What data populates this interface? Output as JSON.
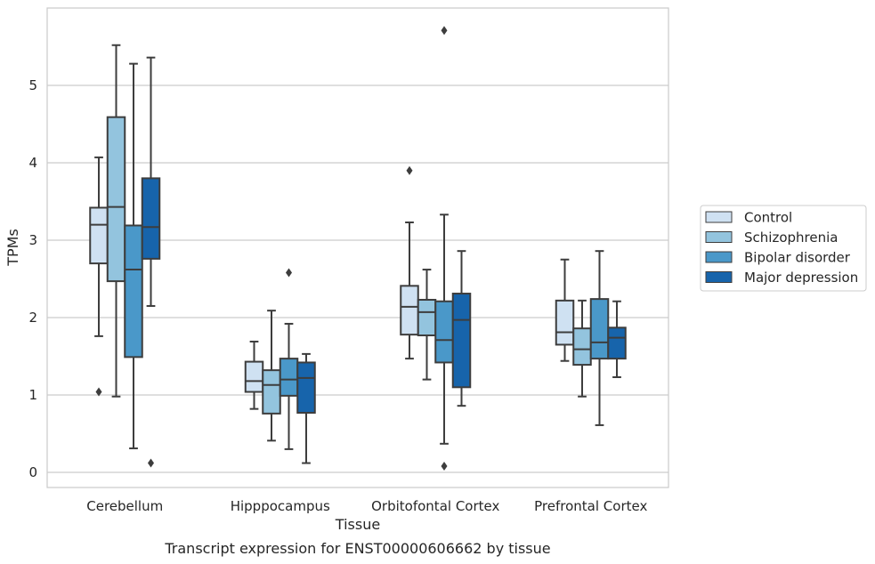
{
  "caption": "Transcript expression for ENST00000606662 by tissue",
  "chart_data": {
    "type": "box",
    "xlabel": "Tissue",
    "ylabel": "TPMs",
    "ylim": [
      -0.18,
      6.05
    ],
    "yticks": [
      0,
      1,
      2,
      3,
      4,
      5
    ],
    "grid": "horizontal",
    "legend_position": "right",
    "categories": [
      "Cerebellum",
      "Hipppocampus",
      "Orbitofontal Cortex",
      "Prefrontal Cortex"
    ],
    "series": [
      {
        "name": "Control",
        "color": "#cfe1f2",
        "boxes": [
          {
            "whislo": 1.76,
            "q1": 2.7,
            "med": 3.2,
            "q3": 3.42,
            "whishi": 4.07,
            "fliers": [
              1.04
            ]
          },
          {
            "whislo": 0.82,
            "q1": 1.04,
            "med": 1.18,
            "q3": 1.43,
            "whishi": 1.69,
            "fliers": []
          },
          {
            "whislo": 1.47,
            "q1": 1.78,
            "med": 2.14,
            "q3": 2.41,
            "whishi": 3.23,
            "fliers": [
              3.9
            ]
          },
          {
            "whislo": 1.44,
            "q1": 1.65,
            "med": 1.81,
            "q3": 2.22,
            "whishi": 2.75,
            "fliers": []
          }
        ]
      },
      {
        "name": "Schizophrenia",
        "color": "#93c4de",
        "boxes": [
          {
            "whislo": 0.98,
            "q1": 2.47,
            "med": 3.43,
            "q3": 4.59,
            "whishi": 5.52,
            "fliers": []
          },
          {
            "whislo": 0.41,
            "q1": 0.76,
            "med": 1.13,
            "q3": 1.32,
            "whishi": 2.09,
            "fliers": []
          },
          {
            "whislo": 1.2,
            "q1": 1.77,
            "med": 2.07,
            "q3": 2.23,
            "whishi": 2.62,
            "fliers": []
          },
          {
            "whislo": 0.98,
            "q1": 1.39,
            "med": 1.59,
            "q3": 1.86,
            "whishi": 2.22,
            "fliers": []
          }
        ]
      },
      {
        "name": "Bipolar disorder",
        "color": "#4a98c9",
        "boxes": [
          {
            "whislo": 0.31,
            "q1": 1.49,
            "med": 2.62,
            "q3": 3.19,
            "whishi": 5.28,
            "fliers": []
          },
          {
            "whislo": 0.3,
            "q1": 0.99,
            "med": 1.2,
            "q3": 1.47,
            "whishi": 1.92,
            "fliers": [
              2.58
            ]
          },
          {
            "whislo": 0.37,
            "q1": 1.42,
            "med": 1.71,
            "q3": 2.21,
            "whishi": 3.33,
            "fliers": [
              0.08,
              5.71
            ]
          },
          {
            "whislo": 0.61,
            "q1": 1.47,
            "med": 1.68,
            "q3": 2.24,
            "whishi": 2.86,
            "fliers": []
          }
        ]
      },
      {
        "name": "Major depression",
        "color": "#1764ab",
        "boxes": [
          {
            "whislo": 2.15,
            "q1": 2.76,
            "med": 3.17,
            "q3": 3.8,
            "whishi": 5.36,
            "fliers": [
              0.12
            ]
          },
          {
            "whislo": 0.12,
            "q1": 0.77,
            "med": 1.22,
            "q3": 1.42,
            "whishi": 1.53,
            "fliers": []
          },
          {
            "whislo": 0.86,
            "q1": 1.1,
            "med": 1.97,
            "q3": 2.31,
            "whishi": 2.86,
            "fliers": []
          },
          {
            "whislo": 1.23,
            "q1": 1.47,
            "med": 1.74,
            "q3": 1.87,
            "whishi": 2.21,
            "fliers": []
          }
        ]
      }
    ]
  }
}
